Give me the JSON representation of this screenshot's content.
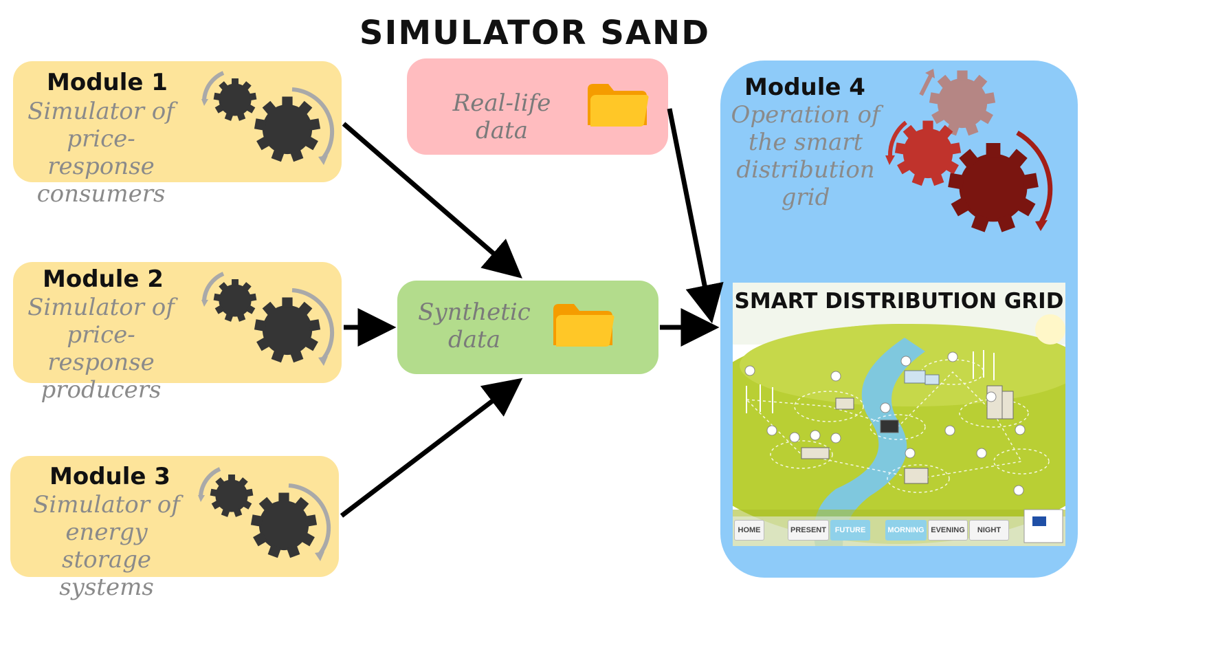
{
  "title": "SIMULATOR SAND",
  "modules": [
    {
      "title": "Module 1",
      "desc": [
        "Simulator of",
        "price-response",
        "consumers"
      ]
    },
    {
      "title": "Module 2",
      "desc": [
        "Simulator of",
        "price-response",
        "producers"
      ]
    },
    {
      "title": "Module 3",
      "desc": [
        "Simulator of",
        "energy storage",
        "systems"
      ]
    },
    {
      "title": "Module 4",
      "desc": [
        "Operation of",
        "the smart",
        "distribution",
        "grid"
      ]
    }
  ],
  "real_data": {
    "label": "Real-life data"
  },
  "synthetic_data": {
    "label": [
      "Synthetic",
      "data"
    ]
  },
  "grid": {
    "title": "SMART DISTRIBUTION GRID",
    "buttons": [
      "HOME",
      "PRESENT",
      "FUTURE",
      "MORNING",
      "EVENING",
      "NIGHT"
    ]
  },
  "colors": {
    "module_box": "#fde49a",
    "real_data_box": "#ffbcbf",
    "synthetic_box": "#b3dc8c",
    "module4_box": "#8ecbf9",
    "gear_dark": "#353535",
    "gear_red": "#c0332c",
    "gear_darkred": "#7a1510",
    "gear_pink": "#b58684",
    "folder": "#ffb300"
  },
  "icons": {
    "gears": "gears-icon",
    "folder": "folder-icon"
  }
}
